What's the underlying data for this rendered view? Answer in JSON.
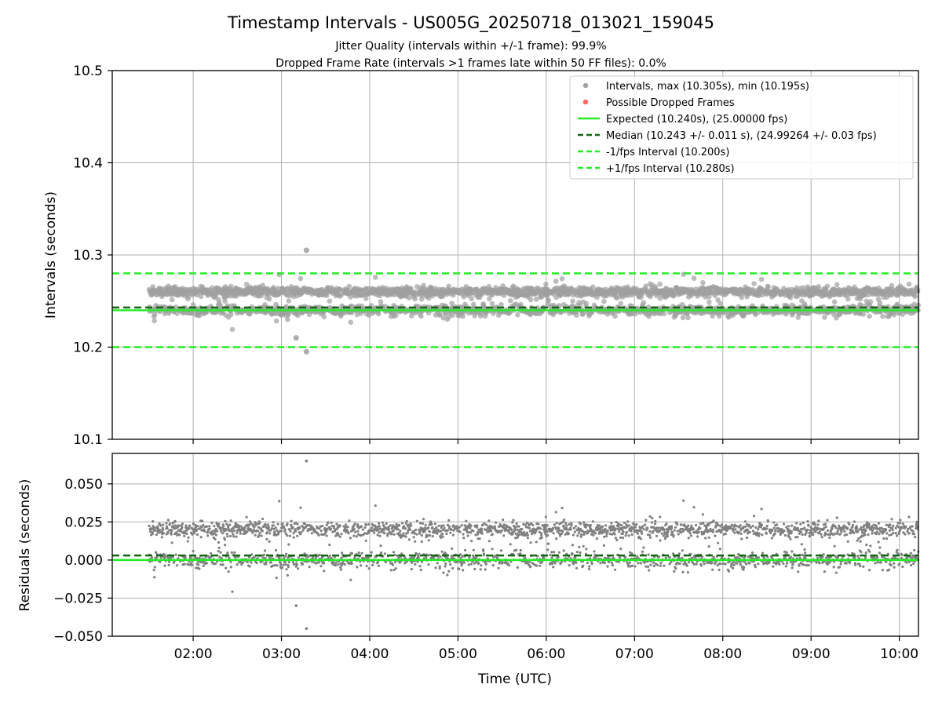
{
  "figure": {
    "title": "Timestamp Intervals - US005G_20250718_013021_159045",
    "subtitle_1": "Jitter Quality (intervals within +/-1 frame): 99.9%",
    "subtitle_2": "Dropped Frame Rate (intervals >1 frames late within 50 FF files): 0.0%"
  },
  "colors": {
    "points": "#808080",
    "dropped": "#ff6666",
    "expected": "#22ee22",
    "median": "#116611",
    "bounds": "#22ee22",
    "grid": "#b0b0b0"
  },
  "chart_data": [
    {
      "type": "scatter",
      "ylabel": "Intervals (seconds)",
      "xlabel": "",
      "ylim": [
        10.1,
        10.5
      ],
      "yticks": [
        "10.1",
        "10.2",
        "10.3",
        "10.4",
        "10.5"
      ],
      "xlim": [
        "01:05",
        "10:13"
      ],
      "xticks": [
        "02:00",
        "03:00",
        "04:00",
        "05:00",
        "06:00",
        "07:00",
        "08:00",
        "09:00",
        "10:00"
      ],
      "grid": true,
      "legend_position": "top-right",
      "reference_lines": {
        "expected": 10.24,
        "median": 10.243,
        "minus_1_fps": 10.2,
        "plus_1_fps": 10.28
      },
      "x_range_data": [
        "01:30",
        "10:13"
      ],
      "typical_bands": [
        10.24,
        10.26
      ],
      "outliers": [
        {
          "x": "03:17",
          "y": 10.305
        },
        {
          "x": "03:17",
          "y": 10.195
        },
        {
          "x": "03:10",
          "y": 10.21
        }
      ],
      "legend": [
        {
          "label": "Intervals, max (10.305s), min (10.195s)",
          "marker": "dot",
          "color": "#a0a0a0"
        },
        {
          "label": "Possible Dropped Frames",
          "marker": "dot",
          "color": "#ff6666"
        },
        {
          "label": "Expected (10.240s), (25.00000 fps)",
          "marker": "solid",
          "color": "#22ee22"
        },
        {
          "label": "Median (10.243 +/- 0.011 s), (24.99264 +/- 0.03 fps)",
          "marker": "dashed",
          "color": "#116611"
        },
        {
          "label": "-1/fps Interval (10.200s)",
          "marker": "dashed",
          "color": "#22ee22"
        },
        {
          "label": "+1/fps Interval (10.280s)",
          "marker": "dashed",
          "color": "#22ee22"
        }
      ]
    },
    {
      "type": "scatter",
      "ylabel": "Residuals (seconds)",
      "xlabel": "Time (UTC)",
      "ylim": [
        -0.05,
        0.07
      ],
      "yticks": [
        "−0.050",
        "−0.025",
        "0.000",
        "0.025",
        "0.050"
      ],
      "xlim": [
        "01:05",
        "10:13"
      ],
      "xticks": [
        "02:00",
        "03:00",
        "04:00",
        "05:00",
        "06:00",
        "07:00",
        "08:00",
        "09:00",
        "10:00"
      ],
      "grid": true,
      "reference_lines": {
        "expected": 0.0,
        "median": 0.003
      },
      "typical_bands": [
        0.0,
        0.02
      ],
      "outliers": [
        {
          "x": "03:17",
          "y": 0.065
        },
        {
          "x": "03:17",
          "y": -0.045
        },
        {
          "x": "03:10",
          "y": -0.03
        }
      ]
    }
  ]
}
